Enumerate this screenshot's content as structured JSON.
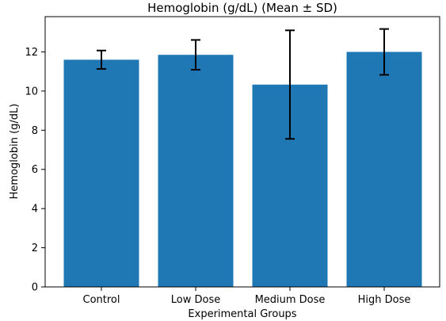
{
  "chart_data": {
    "type": "bar",
    "title": "Hemoglobin (g/dL) (Mean ± SD)",
    "xlabel": "Experimental Groups",
    "ylabel": "Hemoglobin (g/dL)",
    "categories": [
      "Control",
      "Low Dose",
      "Medium Dose",
      "High Dose"
    ],
    "values": [
      11.6,
      11.85,
      10.33,
      12.0
    ],
    "errors": [
      0.47,
      0.76,
      2.77,
      1.17
    ],
    "ylim": [
      0,
      13.8
    ],
    "yticks": [
      0,
      2,
      4,
      6,
      8,
      10,
      12
    ],
    "bar_color": "#1f77b4",
    "error_color": "#000000",
    "grid": false,
    "legend": "none"
  }
}
